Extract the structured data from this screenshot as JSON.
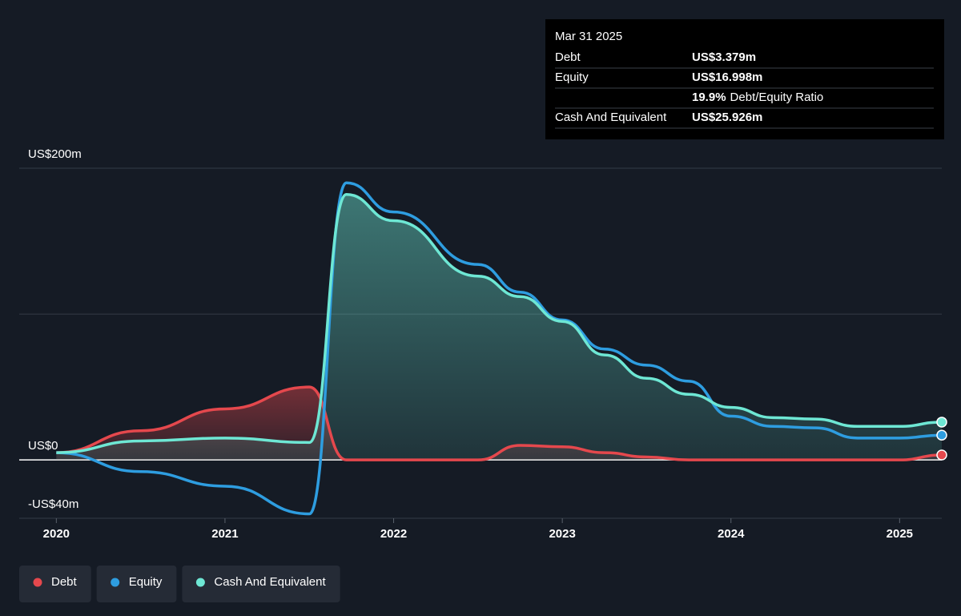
{
  "chart_data": {
    "type": "line",
    "x": [
      2020,
      2020.5,
      2021,
      2021.5,
      2021.72,
      2022,
      2022.5,
      2022.75,
      2023,
      2023.25,
      2023.5,
      2023.75,
      2024,
      2024.25,
      2024.5,
      2024.75,
      2025,
      2025.25
    ],
    "series": [
      {
        "name": "Debt",
        "color": "#e5484d",
        "fill": true,
        "values": [
          5,
          20,
          35,
          50,
          0,
          0,
          0,
          10,
          9,
          5,
          2,
          0,
          0,
          0,
          0,
          0,
          0,
          3.379
        ]
      },
      {
        "name": "Equity",
        "color": "#2e9de0",
        "fill": false,
        "values": [
          5,
          -8,
          -18,
          -37,
          190,
          170,
          134,
          115,
          96,
          76,
          65,
          54,
          30,
          23,
          22,
          15,
          15,
          16.998
        ]
      },
      {
        "name": "Cash And Equivalent",
        "color": "#6ee7d4",
        "fill": true,
        "values": [
          5,
          13,
          15,
          12,
          182,
          164,
          126,
          112,
          95,
          72,
          56,
          45,
          36,
          29,
          28,
          23,
          23,
          25.926
        ]
      }
    ],
    "xlim": [
      2019.78,
      2025.25
    ],
    "xticks": [
      2020,
      2021,
      2022,
      2023,
      2024,
      2025
    ],
    "ylim": [
      -40,
      200
    ],
    "yticks": [
      {
        "value": 200,
        "label": "US$200m"
      },
      {
        "value": 100,
        "label": null
      },
      {
        "value": 0,
        "label": "US$0"
      },
      {
        "value": -40,
        "label": "-US$40m"
      }
    ],
    "grid": true,
    "legend": "bottom-left",
    "tooltip": {
      "date": "Mar 31 2025",
      "rows": [
        {
          "label": "Debt",
          "value": "US$3.379m",
          "color": "#e5484d"
        },
        {
          "label": "Equity",
          "value": "US$16.998m",
          "color": "#2e9de0"
        },
        {
          "label": "Debt/Equity Ratio",
          "value": "19.9%",
          "color": "#ffffff",
          "inline": true
        },
        {
          "label": "Cash And Equivalent",
          "value": "US$25.926m",
          "color": "#6ee7d4"
        }
      ]
    }
  }
}
